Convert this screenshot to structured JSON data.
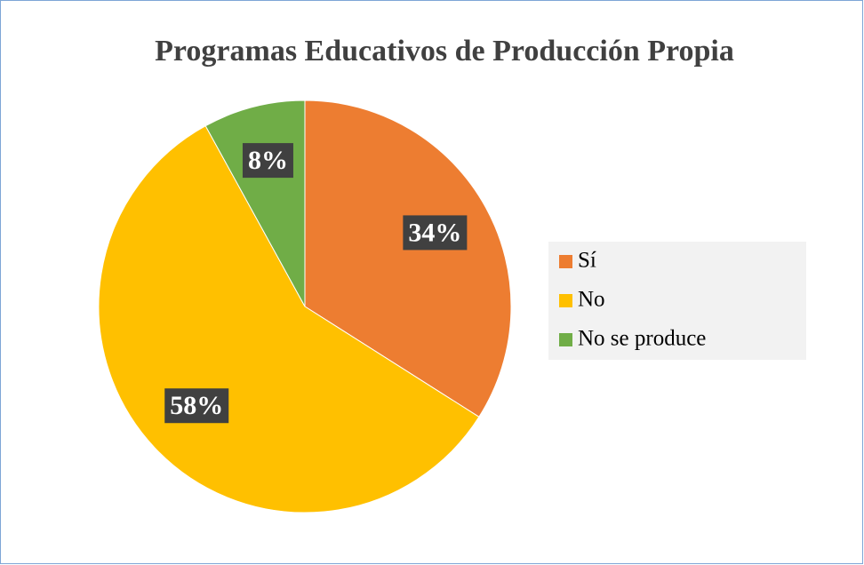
{
  "chart_data": {
    "type": "pie",
    "title": "Programas Educativos de Producción Propia",
    "categories": [
      "Sí",
      "No",
      "No se produce"
    ],
    "values": [
      34,
      58,
      8
    ],
    "value_labels": [
      "34%",
      "58%",
      "8%"
    ],
    "colors": [
      "#ED7D31",
      "#FFC000",
      "#70AD47"
    ],
    "legend": "right"
  }
}
